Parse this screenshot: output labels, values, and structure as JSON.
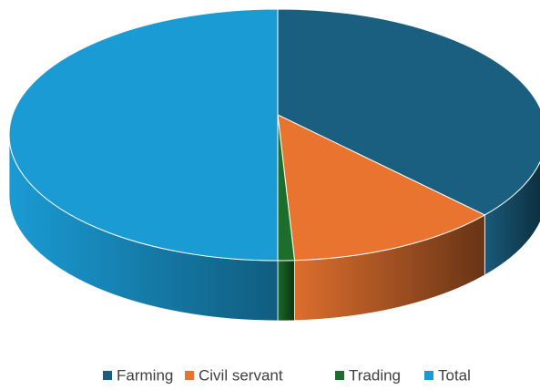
{
  "chart_data": {
    "type": "pie3d",
    "categories": [
      "Farming",
      "Civil servant",
      "Trading",
      "Total"
    ],
    "values": [
      36,
      13,
      1,
      50
    ],
    "colors": [
      "#1a5f80",
      "#e87430",
      "#1c6e2a",
      "#1a9bd4"
    ],
    "legend": "bottom"
  }
}
